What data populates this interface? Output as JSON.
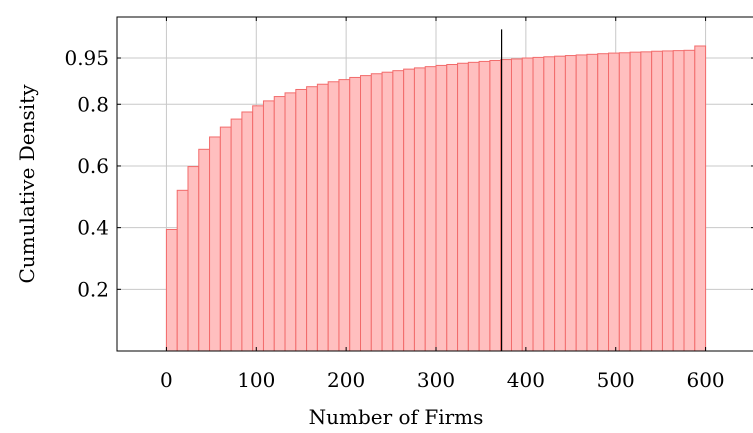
{
  "chart_data": {
    "type": "bar",
    "subtype": "cumulative-histogram",
    "title": "",
    "xlabel": "Number of Firms",
    "ylabel": "Cumulative Density",
    "xlim": [
      -55,
      655
    ],
    "ylim": [
      0,
      1.083
    ],
    "xticks": [
      0,
      100,
      200,
      300,
      400,
      500,
      600
    ],
    "yticks": [
      0.2,
      0.4,
      0.6,
      0.8,
      0.95
    ],
    "ytick_labels": [
      "0.2",
      "0.4",
      "0.6",
      "0.8",
      "0.95"
    ],
    "grid": true,
    "bin_width": 12,
    "bin_starts": [
      0,
      12,
      24,
      36,
      48,
      60,
      72,
      84,
      96,
      108,
      120,
      132,
      144,
      156,
      168,
      180,
      192,
      204,
      216,
      228,
      240,
      252,
      264,
      276,
      288,
      300,
      312,
      324,
      336,
      348,
      360,
      372,
      384,
      396,
      408,
      420,
      432,
      444,
      456,
      468,
      480,
      492,
      504,
      516,
      528,
      540,
      552,
      564,
      576,
      588
    ],
    "values": [
      0.394,
      0.521,
      0.598,
      0.654,
      0.694,
      0.726,
      0.752,
      0.775,
      0.795,
      0.811,
      0.825,
      0.837,
      0.848,
      0.857,
      0.865,
      0.873,
      0.88,
      0.887,
      0.893,
      0.899,
      0.904,
      0.909,
      0.914,
      0.918,
      0.922,
      0.926,
      0.929,
      0.933,
      0.936,
      0.939,
      0.942,
      0.945,
      0.947,
      0.95,
      0.952,
      0.954,
      0.956,
      0.958,
      0.96,
      0.962,
      0.964,
      0.966,
      0.967,
      0.969,
      0.97,
      0.972,
      0.973,
      0.974,
      0.975,
      0.989
    ],
    "bar_color": "#ffbfbf",
    "bar_edge_color": "#f26b6b",
    "vline": {
      "x": 373,
      "ymax": 1.043,
      "color": "#000000"
    }
  }
}
